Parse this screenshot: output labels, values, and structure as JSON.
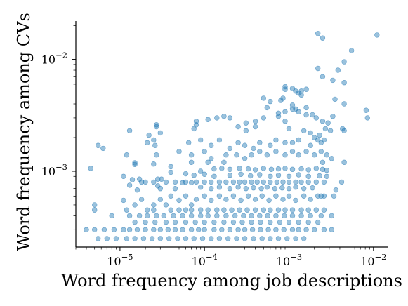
{
  "chart_data": {
    "type": "scatter",
    "xscale": "log",
    "yscale": "log",
    "xlim": [
      3e-06,
      0.015
    ],
    "ylim": [
      0.00021,
      0.022
    ],
    "xlabel": "Word frequency among job descriptions",
    "ylabel": "Word frequency among CVs",
    "x_ticks": [
      {
        "base": "10",
        "exp": "−5",
        "value": 1e-05
      },
      {
        "base": "10",
        "exp": "−4",
        "value": 0.0001
      },
      {
        "base": "10",
        "exp": "−3",
        "value": 0.001
      },
      {
        "base": "10",
        "exp": "−2",
        "value": 0.01
      }
    ],
    "y_ticks": [
      {
        "base": "10",
        "exp": "−3",
        "value": 0.001
      },
      {
        "base": "10",
        "exp": "−2",
        "value": 0.01
      }
    ],
    "grid": false,
    "legend": "none",
    "marker_color": "#1f77b4",
    "points": [
      [
        0.0022,
        0.017
      ],
      [
        0.0025,
        0.0155
      ],
      [
        0.011,
        0.0165
      ],
      [
        0.0055,
        0.012
      ],
      [
        0.0045,
        0.0095
      ],
      [
        0.0038,
        0.008
      ],
      [
        0.0022,
        0.0083
      ],
      [
        0.0025,
        0.007
      ],
      [
        0.0033,
        0.0065
      ],
      [
        0.0045,
        0.0062
      ],
      [
        0.0009,
        0.0057
      ],
      [
        0.0009,
        0.0054
      ],
      [
        0.0011,
        0.0055
      ],
      [
        0.0012,
        0.0052
      ],
      [
        0.0013,
        0.005
      ],
      [
        0.00085,
        0.0045
      ],
      [
        0.0005,
        0.0045
      ],
      [
        0.0006,
        0.0042
      ],
      [
        0.0008,
        0.0043
      ],
      [
        0.0014,
        0.0052
      ],
      [
        0.0014,
        0.0048
      ],
      [
        0.0016,
        0.0054
      ],
      [
        0.0011,
        0.0039
      ],
      [
        0.0011,
        0.0036
      ],
      [
        0.00075,
        0.0031
      ],
      [
        0.00075,
        0.0033
      ],
      [
        0.00055,
        0.0037
      ],
      [
        0.0009,
        0.0034
      ],
      [
        0.0005,
        0.003
      ],
      [
        0.0012,
        0.0036
      ],
      [
        0.0013,
        0.0034
      ],
      [
        0.0016,
        0.0032
      ],
      [
        0.0019,
        0.0032
      ],
      [
        0.0016,
        0.0037
      ],
      [
        0.0021,
        0.003
      ],
      [
        0.0033,
        0.0031
      ],
      [
        0.0025,
        0.0028
      ],
      [
        0.0029,
        0.0027
      ],
      [
        0.0009,
        0.0028
      ],
      [
        0.0004,
        0.0028
      ],
      [
        0.00031,
        0.0027
      ],
      [
        0.0002,
        0.003
      ],
      [
        0.00017,
        0.0031
      ],
      [
        0.00014,
        0.003
      ],
      [
        0.00011,
        0.0029
      ],
      [
        8e-05,
        0.0026
      ],
      [
        7.5e-05,
        0.0024
      ],
      [
        2.7e-05,
        0.0026
      ],
      [
        2.7e-05,
        0.0025
      ],
      [
        3e-05,
        0.0022
      ],
      [
        2.2e-05,
        0.0021
      ],
      [
        1.3e-05,
        0.0023
      ],
      [
        8e-05,
        0.0028
      ],
      [
        0.00031,
        0.0023
      ],
      [
        0.00025,
        0.0025
      ],
      [
        0.0004,
        0.0025
      ],
      [
        0.001,
        0.0024
      ],
      [
        0.0015,
        0.0023
      ],
      [
        0.0018,
        0.0022
      ],
      [
        0.002,
        0.002
      ],
      [
        0.0023,
        0.0021
      ],
      [
        0.0027,
        0.0024
      ],
      [
        0.0031,
        0.0023
      ],
      [
        0.0043,
        0.0024
      ],
      [
        0.0045,
        0.0023
      ],
      [
        0.0085,
        0.003
      ],
      [
        0.0082,
        0.0035
      ],
      [
        0.0045,
        0.004
      ],
      [
        0.0035,
        0.0044
      ],
      [
        0.0022,
        0.0019
      ],
      [
        0.0024,
        0.0018
      ],
      [
        0.0026,
        0.0019
      ],
      [
        0.0018,
        0.0017
      ],
      [
        0.0013,
        0.0019
      ],
      [
        0.0011,
        0.0018
      ],
      [
        0.0009,
        0.0018
      ],
      [
        0.0007,
        0.0019
      ],
      [
        0.0006,
        0.0017
      ],
      [
        0.00045,
        0.0018
      ],
      [
        0.00038,
        0.0016
      ],
      [
        0.0003,
        0.0017
      ],
      [
        0.00025,
        0.0018
      ],
      [
        0.0002,
        0.0016
      ],
      [
        0.00015,
        0.0019
      ],
      [
        0.00012,
        0.0017
      ],
      [
        9e-05,
        0.0019
      ],
      [
        6.5e-05,
        0.0018
      ],
      [
        2.5e-05,
        0.0019
      ],
      [
        2.6e-05,
        0.0017
      ],
      [
        2.1e-05,
        0.0018
      ],
      [
        5.5e-06,
        0.0017
      ],
      [
        6.3e-06,
        0.0016
      ],
      [
        4.5e-06,
        0.00106
      ],
      [
        1.2e-05,
        0.0014
      ],
      [
        2.7e-05,
        0.0014
      ],
      [
        5e-05,
        0.0015
      ],
      [
        7e-05,
        0.0014
      ],
      [
        0.0001,
        0.0015
      ],
      [
        0.00012,
        0.0013
      ],
      [
        0.00018,
        0.0014
      ],
      [
        0.00024,
        0.0014
      ],
      [
        0.0003,
        0.0013
      ],
      [
        0.00036,
        0.0014
      ],
      [
        0.00045,
        0.0015
      ],
      [
        0.00055,
        0.0014
      ],
      [
        0.0007,
        0.0015
      ],
      [
        0.0009,
        0.0014
      ],
      [
        0.0011,
        0.0015
      ],
      [
        0.0013,
        0.0014
      ],
      [
        0.0016,
        0.0015
      ],
      [
        0.002,
        0.0014
      ],
      [
        0.0024,
        0.0015
      ],
      [
        0.0028,
        0.0014
      ],
      [
        0.0032,
        0.0013
      ],
      [
        0.0025,
        0.0012
      ],
      [
        0.0045,
        0.0012
      ],
      [
        0.00017,
        0.0012
      ],
      [
        0.00011,
        0.0012
      ],
      [
        7e-05,
        0.0012
      ],
      [
        4e-05,
        0.0011
      ],
      [
        2.5e-05,
        0.00116
      ],
      [
        1.5e-05,
        0.00119
      ],
      [
        1.5e-05,
        0.00115
      ],
      [
        9e-05,
        0.001
      ],
      [
        0.00013,
        0.00105
      ],
      [
        0.00016,
        0.00106
      ],
      [
        0.0002,
        0.00104
      ],
      [
        0.00026,
        0.00106
      ],
      [
        0.00033,
        0.00105
      ],
      [
        0.0004,
        0.00103
      ],
      [
        0.0005,
        0.00106
      ],
      [
        0.00062,
        0.00104
      ],
      [
        0.00075,
        0.00105
      ],
      [
        0.0009,
        0.00106
      ],
      [
        0.0011,
        0.00104
      ],
      [
        0.0014,
        0.00105
      ],
      [
        0.0017,
        0.00103
      ],
      [
        0.0021,
        0.00106
      ],
      [
        0.0025,
        0.00104
      ],
      [
        0.0028,
        0.00102
      ],
      [
        1.1e-05,
        0.0009
      ],
      [
        1.4e-05,
        0.00084
      ],
      [
        4e-05,
        0.00098
      ],
      [
        6e-05,
        0.00095
      ],
      [
        7.5e-05,
        0.00092
      ],
      [
        0.0001,
        0.00094
      ],
      [
        0.00013,
        0.0009
      ],
      [
        0.0002,
        0.00092
      ],
      [
        0.00027,
        0.00094
      ],
      [
        0.00035,
        0.00091
      ],
      [
        0.00045,
        0.00093
      ],
      [
        0.0006,
        0.0009
      ],
      [
        0.00075,
        0.00092
      ],
      [
        0.001,
        0.0009
      ],
      [
        0.0013,
        0.00093
      ],
      [
        0.0017,
        0.0009
      ],
      [
        0.0023,
        0.00091
      ],
      [
        0.0028,
        0.0009
      ],
      [
        1.7e-05,
        0.00085
      ],
      [
        2.8e-05,
        0.00085
      ],
      [
        3.1e-05,
        0.00085
      ],
      [
        1.8e-05,
        0.0008
      ],
      [
        2e-05,
        0.0008
      ],
      [
        2.5e-05,
        0.0008
      ],
      [
        3.5e-05,
        0.0008
      ],
      [
        4.5e-05,
        0.0008
      ],
      [
        5.5e-05,
        0.00079
      ],
      [
        6e-05,
        0.0008
      ],
      [
        7e-05,
        0.00079
      ],
      [
        8e-05,
        0.0008
      ],
      [
        0.0001,
        0.0008
      ],
      [
        0.00012,
        0.0008
      ],
      [
        0.00015,
        0.0008
      ],
      [
        0.00018,
        0.0008
      ],
      [
        0.00022,
        0.0008
      ],
      [
        0.00026,
        0.0008
      ],
      [
        0.0003,
        0.0008
      ],
      [
        0.00036,
        0.0008
      ],
      [
        0.00042,
        0.0008
      ],
      [
        0.0005,
        0.0008
      ],
      [
        0.0006,
        0.0008
      ],
      [
        0.00072,
        0.0008
      ],
      [
        0.00085,
        0.0008
      ],
      [
        0.001,
        0.0008
      ],
      [
        0.0012,
        0.0008
      ],
      [
        0.0014,
        0.0008
      ],
      [
        0.0017,
        0.0008
      ],
      [
        0.0021,
        0.0008
      ],
      [
        0.0026,
        0.0008
      ],
      [
        0.0042,
        0.0008
      ],
      [
        2.8e-05,
        0.00074
      ],
      [
        3e-05,
        0.0007
      ],
      [
        1.3e-05,
        0.00075
      ],
      [
        1.6e-05,
        0.00068
      ],
      [
        4.5e-05,
        0.0007
      ],
      [
        9e-05,
        0.00072
      ],
      [
        0.00012,
        0.0007
      ],
      [
        0.00015,
        0.00072
      ],
      [
        0.0002,
        0.0007
      ],
      [
        0.00025,
        0.00072
      ],
      [
        0.00031,
        0.0007
      ],
      [
        0.00038,
        0.00071
      ],
      [
        0.00047,
        0.0007
      ],
      [
        0.00055,
        0.00072
      ],
      [
        0.00068,
        0.0007
      ],
      [
        0.00083,
        0.00071
      ],
      [
        0.001,
        0.0007
      ],
      [
        0.0012,
        0.00072
      ],
      [
        0.0015,
        0.0007
      ],
      [
        0.0019,
        0.00071
      ],
      [
        5e-06,
        0.0005
      ],
      [
        5e-06,
        0.00045
      ],
      [
        1.1e-05,
        0.00055
      ],
      [
        1.8e-05,
        0.00056
      ],
      [
        1.2e-05,
        0.00045
      ],
      [
        8e-06,
        0.0004
      ],
      [
        1.3e-05,
        0.0004
      ],
      [
        2.1e-05,
        0.00045
      ],
      [
        2.5e-05,
        0.0005
      ],
      [
        3e-05,
        0.00056
      ],
      [
        3.5e-05,
        0.0005
      ],
      [
        4e-05,
        0.0006
      ],
      [
        5e-05,
        0.00055
      ],
      [
        6e-05,
        0.0006
      ],
      [
        7e-05,
        0.0005
      ],
      [
        8e-05,
        0.00056
      ],
      [
        0.0001,
        0.0006
      ],
      [
        0.00012,
        0.00055
      ],
      [
        0.00015,
        0.0006
      ],
      [
        0.00018,
        0.00056
      ],
      [
        0.00022,
        0.0006
      ],
      [
        0.00027,
        0.00055
      ],
      [
        0.00033,
        0.0006
      ],
      [
        0.0004,
        0.00056
      ],
      [
        0.00048,
        0.0006
      ],
      [
        0.00058,
        0.00055
      ],
      [
        0.0007,
        0.0006
      ],
      [
        0.00085,
        0.00056
      ],
      [
        0.001,
        0.0006
      ],
      [
        0.0012,
        0.00055
      ],
      [
        0.0015,
        0.0006
      ],
      [
        0.0018,
        0.00056
      ],
      [
        0.0022,
        0.0006
      ],
      [
        0.0024,
        0.0006
      ],
      [
        0.0026,
        0.0006
      ],
      [
        0.0036,
        0.00068
      ],
      [
        0.0034,
        0.0006
      ],
      [
        1.5e-05,
        0.0005
      ],
      [
        2.5e-05,
        0.00045
      ],
      [
        4e-05,
        0.00045
      ],
      [
        5e-05,
        0.00045
      ],
      [
        6e-05,
        0.00045
      ],
      [
        7e-05,
        0.00045
      ],
      [
        9e-05,
        0.00045
      ],
      [
        0.00011,
        0.00045
      ],
      [
        0.00014,
        0.00045
      ],
      [
        0.00017,
        0.00045
      ],
      [
        0.00021,
        0.00045
      ],
      [
        0.00026,
        0.00045
      ],
      [
        0.00032,
        0.00045
      ],
      [
        0.0004,
        0.00045
      ],
      [
        0.0005,
        0.00045
      ],
      [
        0.0006,
        0.00045
      ],
      [
        0.00075,
        0.00045
      ],
      [
        0.0009,
        0.00045
      ],
      [
        0.0011,
        0.00045
      ],
      [
        0.0014,
        0.00045
      ],
      [
        0.0017,
        0.00045
      ],
      [
        0.0021,
        0.00045
      ],
      [
        0.0026,
        0.00045
      ],
      [
        1.7e-05,
        0.0004
      ],
      [
        2.1e-05,
        0.0004
      ],
      [
        2.7e-05,
        0.0004
      ],
      [
        3.3e-05,
        0.0004
      ],
      [
        4.3e-05,
        0.0004
      ],
      [
        5.5e-05,
        0.0004
      ],
      [
        7e-05,
        0.0004
      ],
      [
        9e-05,
        0.0004
      ],
      [
        0.00011,
        0.0004
      ],
      [
        0.00014,
        0.0004
      ],
      [
        0.00018,
        0.0004
      ],
      [
        0.00023,
        0.0004
      ],
      [
        0.00029,
        0.0004
      ],
      [
        0.00036,
        0.0004
      ],
      [
        0.00045,
        0.0004
      ],
      [
        0.00056,
        0.0004
      ],
      [
        0.0007,
        0.0004
      ],
      [
        0.00088,
        0.0004
      ],
      [
        0.0011,
        0.0004
      ],
      [
        0.0014,
        0.0004
      ],
      [
        0.0018,
        0.0004
      ],
      [
        0.0024,
        0.0004
      ],
      [
        0.0032,
        0.0004
      ],
      [
        1.5e-05,
        0.00035
      ],
      [
        2e-05,
        0.00035
      ],
      [
        2.6e-05,
        0.00035
      ],
      [
        3.5e-05,
        0.00035
      ],
      [
        4.5e-05,
        0.00035
      ],
      [
        6e-05,
        0.00035
      ],
      [
        7.8e-05,
        0.00035
      ],
      [
        0.0001,
        0.00035
      ],
      [
        0.00013,
        0.00035
      ],
      [
        0.00017,
        0.00035
      ],
      [
        0.00022,
        0.00035
      ],
      [
        0.00028,
        0.00035
      ],
      [
        0.00036,
        0.00035
      ],
      [
        0.00046,
        0.00035
      ],
      [
        0.0006,
        0.00035
      ],
      [
        0.00078,
        0.00035
      ],
      [
        0.001,
        0.00035
      ],
      [
        0.0013,
        0.00035
      ],
      [
        0.0017,
        0.00035
      ],
      [
        0.0022,
        0.00035
      ],
      [
        4e-06,
        0.0003
      ],
      [
        5e-06,
        0.0003
      ],
      [
        6.5e-06,
        0.0003
      ],
      [
        8.5e-06,
        0.0003
      ],
      [
        1.1e-05,
        0.0003
      ],
      [
        1.3e-05,
        0.0003
      ],
      [
        1.6e-05,
        0.0003
      ],
      [
        2e-05,
        0.0003
      ],
      [
        2.5e-05,
        0.0003
      ],
      [
        3e-05,
        0.0003
      ],
      [
        3.7e-05,
        0.0003
      ],
      [
        4.5e-05,
        0.0003
      ],
      [
        5.5e-05,
        0.0003
      ],
      [
        7e-05,
        0.0003
      ],
      [
        8.5e-05,
        0.0003
      ],
      [
        0.0001,
        0.0003
      ],
      [
        0.00013,
        0.0003
      ],
      [
        0.00016,
        0.0003
      ],
      [
        0.0002,
        0.0003
      ],
      [
        0.00025,
        0.0003
      ],
      [
        0.0003,
        0.0003
      ],
      [
        0.00037,
        0.0003
      ],
      [
        0.00046,
        0.0003
      ],
      [
        0.00057,
        0.0003
      ],
      [
        0.0007,
        0.0003
      ],
      [
        0.00087,
        0.0003
      ],
      [
        0.0011,
        0.0003
      ],
      [
        0.0013,
        0.0003
      ],
      [
        0.0016,
        0.0003
      ],
      [
        0.002,
        0.0003
      ],
      [
        0.0026,
        0.0003
      ],
      [
        0.0032,
        0.0003
      ],
      [
        5.5e-06,
        0.00025
      ],
      [
        7e-06,
        0.00025
      ],
      [
        9e-06,
        0.00025
      ],
      [
        1.2e-05,
        0.00025
      ],
      [
        1.5e-05,
        0.00025
      ],
      [
        1.9e-05,
        0.00025
      ],
      [
        2.4e-05,
        0.00025
      ],
      [
        3e-05,
        0.00025
      ],
      [
        3.8e-05,
        0.00025
      ],
      [
        4.8e-05,
        0.00025
      ],
      [
        6e-05,
        0.00025
      ],
      [
        7.5e-05,
        0.00025
      ],
      [
        9.5e-05,
        0.00025
      ],
      [
        0.00012,
        0.00025
      ],
      [
        0.00015,
        0.00025
      ],
      [
        0.00019,
        0.00025
      ],
      [
        0.00024,
        0.00025
      ],
      [
        0.0003,
        0.00025
      ],
      [
        0.00038,
        0.00025
      ],
      [
        0.00048,
        0.00025
      ],
      [
        0.0006,
        0.00025
      ],
      [
        0.00075,
        0.00025
      ],
      [
        0.00095,
        0.00025
      ],
      [
        0.0012,
        0.00025
      ],
      [
        0.0015,
        0.00025
      ]
    ]
  }
}
